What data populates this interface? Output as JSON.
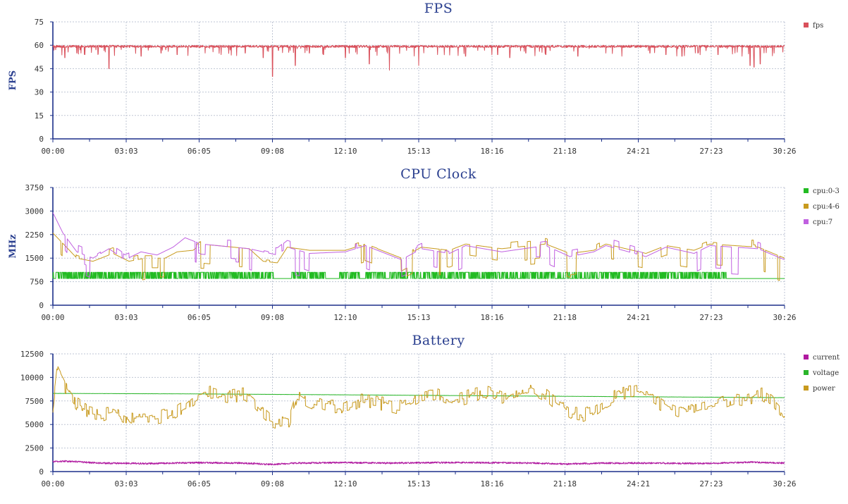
{
  "chart_data": [
    {
      "type": "line",
      "title": "FPS",
      "xlabel": "",
      "ylabel": "FPS",
      "ylim": [
        0,
        75
      ],
      "yticks": [
        0,
        15,
        30,
        45,
        60,
        75
      ],
      "xlim": [
        "00:00",
        "30:26"
      ],
      "xticks": [
        "00:00",
        "03:03",
        "06:05",
        "09:08",
        "12:10",
        "15:13",
        "18:16",
        "21:18",
        "24:21",
        "27:23",
        "30:26"
      ],
      "grid": true,
      "legend_position": "right",
      "series": [
        {
          "name": "fps",
          "color": "#d9505b",
          "baseline": 60,
          "noise": 1.5,
          "dips": [
            [
              "00:30",
              52
            ],
            [
              "01:00",
              55
            ],
            [
              "01:20",
              54
            ],
            [
              "02:20",
              45
            ],
            [
              "03:40",
              53
            ],
            [
              "04:30",
              55
            ],
            [
              "05:10",
              54
            ],
            [
              "06:20",
              55
            ],
            [
              "07:00",
              54
            ],
            [
              "08:00",
              55
            ],
            [
              "08:45",
              52
            ],
            [
              "09:08",
              40
            ],
            [
              "10:05",
              47
            ],
            [
              "10:40",
              55
            ],
            [
              "11:15",
              54
            ],
            [
              "12:10",
              52
            ],
            [
              "13:10",
              48
            ],
            [
              "14:00",
              44
            ],
            [
              "15:13",
              47
            ],
            [
              "16:00",
              54
            ],
            [
              "17:10",
              53
            ],
            [
              "18:30",
              54
            ],
            [
              "19:00",
              52
            ],
            [
              "19:40",
              55
            ],
            [
              "20:30",
              54
            ],
            [
              "21:50",
              53
            ],
            [
              "23:00",
              55
            ],
            [
              "23:40",
              53
            ],
            [
              "24:50",
              55
            ],
            [
              "25:30",
              54
            ],
            [
              "26:10",
              53
            ],
            [
              "26:50",
              55
            ],
            [
              "27:40",
              54
            ],
            [
              "28:40",
              53
            ],
            [
              "29:00",
              47
            ],
            [
              "29:10",
              46
            ],
            [
              "29:25",
              48
            ],
            [
              "30:00",
              55
            ]
          ]
        }
      ]
    },
    {
      "type": "line",
      "title": "CPU Clock",
      "xlabel": "",
      "ylabel": "MHz",
      "ylim": [
        0,
        3750
      ],
      "yticks": [
        0,
        750,
        1500,
        2250,
        3000,
        3750
      ],
      "xlim": [
        "00:00",
        "30:26"
      ],
      "xticks": [
        "00:00",
        "03:03",
        "06:05",
        "09:08",
        "12:10",
        "15:13",
        "18:16",
        "21:18",
        "24:21",
        "27:23",
        "30:26"
      ],
      "grid": true,
      "legend_position": "right",
      "series": [
        {
          "name": "cpu:0-3",
          "color": "#22bb22",
          "low": 850,
          "high": 1050,
          "flat_segments": [
            [
              "09:10",
              "09:55"
            ],
            [
              "11:20",
              "11:55"
            ],
            [
              "12:45",
              "13:00"
            ],
            [
              "13:50",
              "14:00"
            ],
            [
              "18:55",
              "19:00"
            ],
            [
              "22:00",
              "22:05"
            ],
            [
              "28:00",
              "30:26"
            ]
          ]
        },
        {
          "name": "cpu:4-6",
          "color": "#c89a1e",
          "levels": [
            [
              "00:00",
              2300
            ],
            [
              "00:30",
              1900
            ],
            [
              "01:00",
              1500
            ],
            [
              "01:40",
              1400
            ],
            [
              "02:30",
              1650
            ],
            [
              "03:10",
              1400
            ],
            [
              "03:50",
              1500
            ],
            [
              "04:40",
              1500
            ],
            [
              "05:10",
              1700
            ],
            [
              "05:50",
              1750
            ],
            [
              "06:10",
              1950
            ],
            [
              "08:10",
              1800
            ],
            [
              "08:45",
              1400
            ],
            [
              "09:20",
              1350
            ],
            [
              "09:45",
              1850
            ],
            [
              "10:40",
              1750
            ],
            [
              "12:10",
              1750
            ],
            [
              "13:00",
              1950
            ],
            [
              "14:30",
              1500
            ],
            [
              "15:20",
              1850
            ],
            [
              "16:30",
              1750
            ],
            [
              "17:10",
              1950
            ],
            [
              "18:40",
              1800
            ],
            [
              "20:30",
              1950
            ],
            [
              "21:30",
              1650
            ],
            [
              "22:30",
              1750
            ],
            [
              "23:00",
              1950
            ],
            [
              "24:40",
              1650
            ],
            [
              "25:30",
              1900
            ],
            [
              "26:40",
              1750
            ],
            [
              "27:20",
              1950
            ],
            [
              "29:20",
              1850
            ],
            [
              "30:26",
              1500
            ]
          ]
        },
        {
          "name": "cpu:7",
          "color": "#c060e0",
          "levels": [
            [
              "00:00",
              2950
            ],
            [
              "00:25",
              2300
            ],
            [
              "01:00",
              1700
            ],
            [
              "01:40",
              1500
            ],
            [
              "02:20",
              1800
            ],
            [
              "03:00",
              1450
            ],
            [
              "03:40",
              1700
            ],
            [
              "04:20",
              1600
            ],
            [
              "05:00",
              1850
            ],
            [
              "05:30",
              2150
            ],
            [
              "06:10",
              1950
            ],
            [
              "08:10",
              1800
            ],
            [
              "08:45",
              1700
            ],
            [
              "09:20",
              1600
            ],
            [
              "09:45",
              1850
            ],
            [
              "10:40",
              1650
            ],
            [
              "12:10",
              1700
            ],
            [
              "13:00",
              1900
            ],
            [
              "14:30",
              1450
            ],
            [
              "15:20",
              1800
            ],
            [
              "16:30",
              1650
            ],
            [
              "17:10",
              1900
            ],
            [
              "18:40",
              1700
            ],
            [
              "20:30",
              1900
            ],
            [
              "21:30",
              1550
            ],
            [
              "22:30",
              1700
            ],
            [
              "23:00",
              1900
            ],
            [
              "24:40",
              1550
            ],
            [
              "25:30",
              1850
            ],
            [
              "26:40",
              1650
            ],
            [
              "27:20",
              1900
            ],
            [
              "29:20",
              1800
            ],
            [
              "30:26",
              1450
            ]
          ]
        }
      ]
    },
    {
      "type": "line",
      "title": "Battery",
      "xlabel": "",
      "ylabel": "",
      "ylim": [
        0,
        12500
      ],
      "yticks": [
        0,
        2500,
        5000,
        7500,
        10000,
        12500
      ],
      "xlim": [
        "00:00",
        "30:26"
      ],
      "xticks": [
        "00:00",
        "03:03",
        "06:05",
        "09:08",
        "12:10",
        "15:13",
        "18:16",
        "21:18",
        "24:21",
        "27:23",
        "30:26"
      ],
      "grid": true,
      "legend_position": "right",
      "series": [
        {
          "name": "current",
          "color": "#b01aa0",
          "levels": [
            [
              "00:00",
              1050
            ],
            [
              "00:30",
              1100
            ],
            [
              "02:00",
              900
            ],
            [
              "04:00",
              850
            ],
            [
              "06:00",
              950
            ],
            [
              "08:00",
              900
            ],
            [
              "09:08",
              750
            ],
            [
              "10:00",
              900
            ],
            [
              "12:00",
              950
            ],
            [
              "14:00",
              900
            ],
            [
              "16:00",
              950
            ],
            [
              "18:00",
              950
            ],
            [
              "20:00",
              900
            ],
            [
              "21:18",
              800
            ],
            [
              "23:00",
              900
            ],
            [
              "25:00",
              900
            ],
            [
              "27:00",
              850
            ],
            [
              "29:00",
              1000
            ],
            [
              "30:26",
              900
            ]
          ]
        },
        {
          "name": "voltage",
          "color": "#2ab52a",
          "levels": [
            [
              "00:00",
              8300
            ],
            [
              "06:00",
              8250
            ],
            [
              "12:00",
              8150
            ],
            [
              "18:00",
              8050
            ],
            [
              "24:00",
              7950
            ],
            [
              "30:26",
              7850
            ]
          ]
        },
        {
          "name": "power",
          "color": "#c89a1e",
          "levels": [
            [
              "00:00",
              7000
            ],
            [
              "00:10",
              10800
            ],
            [
              "00:30",
              9000
            ],
            [
              "01:00",
              7200
            ],
            [
              "01:30",
              6300
            ],
            [
              "02:00",
              6000
            ],
            [
              "02:30",
              6500
            ],
            [
              "03:00",
              5800
            ],
            [
              "03:30",
              5500
            ],
            [
              "04:00",
              5500
            ],
            [
              "04:30",
              5800
            ],
            [
              "05:00",
              6200
            ],
            [
              "05:30",
              7000
            ],
            [
              "06:05",
              8200
            ],
            [
              "06:40",
              8500
            ],
            [
              "07:20",
              8000
            ],
            [
              "08:00",
              8200
            ],
            [
              "08:40",
              6300
            ],
            [
              "09:00",
              5500
            ],
            [
              "09:20",
              5200
            ],
            [
              "09:50",
              5300
            ],
            [
              "10:10",
              8200
            ],
            [
              "10:40",
              7500
            ],
            [
              "11:20",
              6800
            ],
            [
              "12:10",
              7000
            ],
            [
              "12:50",
              7500
            ],
            [
              "13:40",
              7200
            ],
            [
              "14:30",
              6800
            ],
            [
              "15:13",
              7800
            ],
            [
              "16:00",
              8300
            ],
            [
              "16:40",
              7500
            ],
            [
              "17:20",
              8000
            ],
            [
              "18:00",
              8500
            ],
            [
              "18:40",
              7800
            ],
            [
              "19:20",
              8500
            ],
            [
              "19:50",
              9000
            ],
            [
              "20:30",
              8200
            ],
            [
              "21:00",
              7000
            ],
            [
              "21:30",
              6200
            ],
            [
              "22:00",
              6000
            ],
            [
              "22:30",
              6500
            ],
            [
              "23:00",
              7500
            ],
            [
              "23:40",
              8300
            ],
            [
              "24:20",
              8600
            ],
            [
              "24:50",
              8000
            ],
            [
              "25:30",
              6800
            ],
            [
              "26:00",
              6200
            ],
            [
              "26:30",
              6500
            ],
            [
              "27:00",
              6800
            ],
            [
              "27:40",
              7200
            ],
            [
              "28:20",
              7800
            ],
            [
              "28:50",
              7600
            ],
            [
              "29:30",
              8200
            ],
            [
              "30:00",
              7200
            ],
            [
              "30:26",
              6000
            ]
          ]
        }
      ]
    }
  ]
}
